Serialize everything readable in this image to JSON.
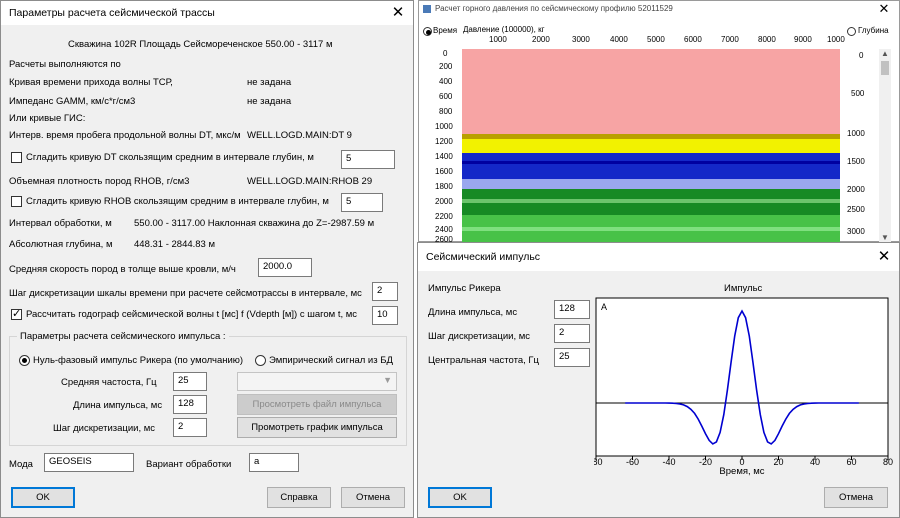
{
  "dlg1": {
    "title": "Параметры расчета сейсмической трассы",
    "well_info": "Скважина 102R  Площадь   Сейсмореченское    550.00 - 3117 м",
    "calc_by": "Расчеты выполняются по",
    "tcp_label": "Кривая времени прихода волны ТСР,",
    "tcp_value": "не задана",
    "gamm_label": "Импеданс GAMM, км/с*г/см3",
    "gamm_value": "не задана",
    "or_gis": "Или кривые ГИС:",
    "dt_label": "Интерв. время пробега продольной волны DT, мкс/м",
    "dt_value": "WELL.LOGD.MAIN:DT  9",
    "smooth_dt_label": "Сгладить кривую DT скользящим средним в интервале глубин, м",
    "smooth_dt_value": "5",
    "rhob_label": "Объемная плотность пород RHOB, г/см3",
    "rhob_value": "WELL.LOGD.MAIN:RHOB  29",
    "smooth_rhob_label": "Сгладить кривую RHOB скользящим средним в интервале глубин, м",
    "smooth_rhob_value": "5",
    "interval_label": "Интервал обработки, м",
    "interval_value": "550.00 - 3117.00 Наклонная скважина до Z=-2987.59 м",
    "abs_label": "Абсолютная глубина, м",
    "abs_value": "448.31 - 2844.83 м",
    "avg_speed_label": "Средняя скорость пород в толще выше кровли, м/ч",
    "avg_speed_value": "2000.0",
    "step_label": "Шаг дискретизации шкалы времени при расчете сейсмотрассы в интервале, мс",
    "step_value": "2",
    "hodograph_label": "Рассчитать годограф сейсмической волны t [мс] f (Vdepth [м]) с шагом t, мс",
    "hodograph_value": "10",
    "group_title": "Параметры расчета сейсмического импульса :",
    "radio_ricker": "Нуль-фазовый импульс Рикера (по умолчанию)",
    "radio_empirical": "Эмпирический сигнал из БД",
    "freq_label": "Средняя частоста, Гц",
    "freq_value": "25",
    "len_label": "Длина импульса, мс",
    "len_value": "128",
    "disc_label": "Шаг дискретизации, мс",
    "disc_value": "2",
    "view_file_btn": "Просмотреть файл импульса",
    "view_graph_btn": "Промотреть график импульса",
    "mode_label": "Мода",
    "mode_value": "GEOSEIS",
    "variant_label": "Вариант обработки",
    "variant_value": "a",
    "ok": "OK",
    "help": "Справка",
    "cancel": "Отмена"
  },
  "win3": {
    "title": "Расчет горного давления по сейсмическому профилю 52011529",
    "radio_time": "Время",
    "radio_depth": "Глубина",
    "top_axis_label": "Давление (100000), кг",
    "top_ticks": [
      "1000",
      "2000",
      "3000",
      "4000",
      "5000",
      "6000",
      "7000",
      "8000",
      "9000",
      "1000"
    ],
    "left_ticks": [
      "0",
      "200",
      "400",
      "600",
      "800",
      "1000",
      "1200",
      "1400",
      "1600",
      "1800",
      "2000",
      "2200",
      "2400",
      "2600"
    ],
    "right_ticks": [
      "0",
      "500",
      "1000",
      "1500",
      "2000",
      "2500",
      "3000"
    ]
  },
  "dlg2": {
    "title": "Сейсмический импульс",
    "ricker_label": "Импульс Рикера",
    "len_label": "Длина импульса, мс",
    "len_value": "128",
    "step_label": "Шаг дискретизации, мс",
    "step_value": "2",
    "freq_label": "Центральная частота, Гц",
    "freq_value": "25",
    "plot_title": "Импульс",
    "amp_label": "A",
    "xlabel": "Время, мс",
    "ok": "OK",
    "cancel": "Отмена"
  },
  "chart_data": {
    "type": "line",
    "title": "Импульс",
    "xlabel": "Время, мс",
    "ylabel": "A",
    "xlim": [
      -80,
      80
    ],
    "x_ticks": [
      -80,
      -60,
      -40,
      -20,
      0,
      20,
      40,
      60,
      80
    ],
    "series": [
      {
        "type": "ricker",
        "central_frequency_hz": 25,
        "length_ms": 128,
        "step_ms": 2,
        "x_range": [
          -64,
          64
        ]
      }
    ],
    "line_color": "#0000d0"
  }
}
